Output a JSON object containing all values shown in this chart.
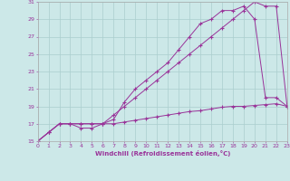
{
  "xlabel": "Windchill (Refroidissement éolien,°C)",
  "bg_color": "#cce8e8",
  "grid_color": "#aacece",
  "line_color": "#993399",
  "xmin": 0,
  "xmax": 23,
  "ymin": 15,
  "ymax": 31,
  "line1_x": [
    0,
    1,
    2,
    3,
    4,
    5,
    6,
    7,
    8,
    9,
    10,
    11,
    12,
    13,
    14,
    15,
    16,
    17,
    18,
    19,
    20,
    21,
    22,
    23
  ],
  "line1_y": [
    15,
    16,
    17,
    17,
    17,
    17,
    17,
    18,
    19,
    20,
    21,
    22,
    23,
    24,
    25,
    26,
    27,
    28,
    29,
    30,
    31,
    30.5,
    30.5,
    19
  ],
  "line2_x": [
    0,
    1,
    2,
    3,
    4,
    5,
    6,
    7,
    8,
    9,
    10,
    11,
    12,
    13,
    14,
    15,
    16,
    17,
    18,
    19,
    20,
    21,
    22,
    23
  ],
  "line2_y": [
    15,
    16,
    17,
    17,
    16.5,
    16.5,
    17,
    17.5,
    19.5,
    21,
    22,
    23,
    24,
    25.5,
    27,
    28.5,
    29,
    30,
    30,
    30.5,
    29,
    20,
    20,
    19
  ],
  "line3_x": [
    0,
    1,
    2,
    3,
    4,
    5,
    6,
    7,
    8,
    9,
    10,
    11,
    12,
    13,
    14,
    15,
    16,
    17,
    18,
    19,
    20,
    21,
    22,
    23
  ],
  "line3_y": [
    15,
    16,
    17,
    17,
    17,
    17,
    17,
    17,
    17.2,
    17.4,
    17.6,
    17.8,
    18.0,
    18.2,
    18.4,
    18.5,
    18.7,
    18.9,
    19.0,
    19.0,
    19.1,
    19.2,
    19.3,
    19.0
  ]
}
